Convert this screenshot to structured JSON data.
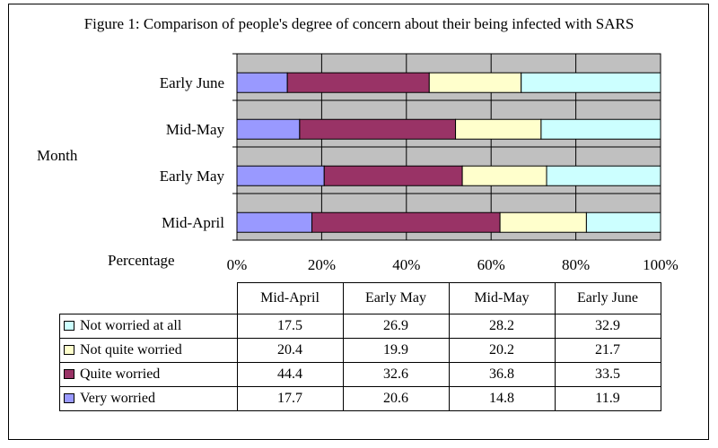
{
  "chart_data": {
    "type": "bar",
    "orientation": "horizontal",
    "stacked": true,
    "title": "Figure 1: Comparison of people's degree of concern about their being infected with SARS",
    "xlabel": "Percentage",
    "ylabel": "Month",
    "xlim": [
      0,
      100
    ],
    "x_ticks": [
      "0%",
      "20%",
      "40%",
      "60%",
      "80%",
      "100%"
    ],
    "grid": true,
    "categories": [
      "Mid-April",
      "Early May",
      "Mid-May",
      "Early June"
    ],
    "series": [
      {
        "name": "Very worried",
        "color": "#9999ff",
        "values": [
          17.7,
          20.6,
          14.8,
          11.9
        ]
      },
      {
        "name": "Quite worried",
        "color": "#993366",
        "values": [
          44.4,
          32.6,
          36.8,
          33.5
        ]
      },
      {
        "name": "Not quite worried",
        "color": "#ffffcc",
        "values": [
          20.4,
          19.9,
          20.2,
          21.7
        ]
      },
      {
        "name": "Not worried at all",
        "color": "#ccffff",
        "values": [
          17.5,
          26.9,
          28.2,
          32.9
        ]
      }
    ],
    "plot_background": "#c0c0c0"
  },
  "table": {
    "columns": [
      "Mid-April",
      "Early May",
      "Mid-May",
      "Early June"
    ],
    "rows": [
      {
        "label": "Not worried at all",
        "color": "#ccffff",
        "values": [
          "17.5",
          "26.9",
          "28.2",
          "32.9"
        ]
      },
      {
        "label": "Not quite worried",
        "color": "#ffffcc",
        "values": [
          "20.4",
          "19.9",
          "20.2",
          "21.7"
        ]
      },
      {
        "label": "Quite worried",
        "color": "#993366",
        "values": [
          "44.4",
          "32.6",
          "36.8",
          "33.5"
        ]
      },
      {
        "label": "Very worried",
        "color": "#9999ff",
        "values": [
          "17.7",
          "20.6",
          "14.8",
          "11.9"
        ]
      }
    ]
  }
}
